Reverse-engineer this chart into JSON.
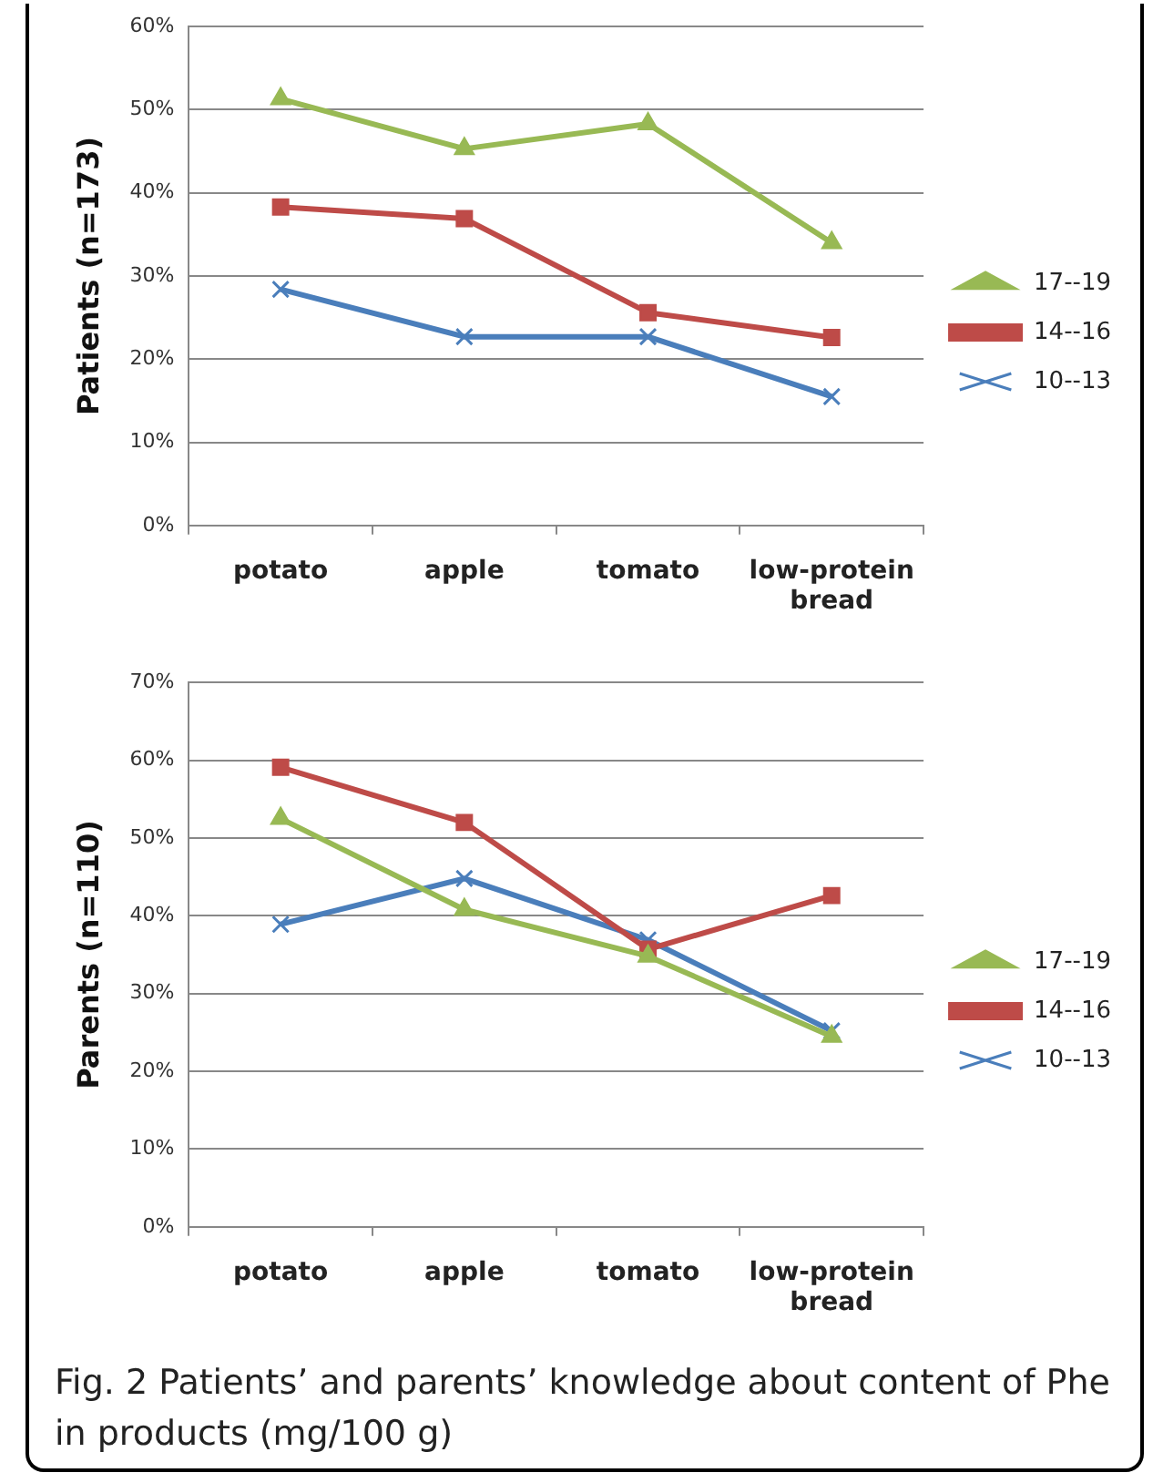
{
  "chart_data": [
    {
      "type": "line",
      "ylabel": "Patients (n=173)",
      "categories": [
        "potato",
        "apple",
        "tomato",
        "low-protein bread"
      ],
      "series": [
        {
          "name": "10--13",
          "color": "#4a7ebb",
          "marker": "cross",
          "values": [
            28.4,
            22.7,
            22.7,
            15.5
          ]
        },
        {
          "name": "14--16",
          "color": "#be4b48",
          "marker": "square",
          "values": [
            38.3,
            36.9,
            25.6,
            22.6
          ]
        },
        {
          "name": "17--19",
          "color": "#98b954",
          "marker": "triangle",
          "values": [
            51.3,
            45.3,
            48.3,
            34.0
          ]
        }
      ],
      "ylim": [
        0,
        60
      ],
      "yticks": [
        {
          "value": 0,
          "label": "0%"
        },
        {
          "value": 10,
          "label": "10%"
        },
        {
          "value": 20,
          "label": "20%"
        },
        {
          "value": 30,
          "label": "30%"
        },
        {
          "value": 40,
          "label": "40%"
        },
        {
          "value": 50,
          "label": "50%"
        },
        {
          "value": 60,
          "label": "60%"
        }
      ],
      "grid": "y",
      "legend": "right",
      "line_style": "solid"
    },
    {
      "type": "line",
      "ylabel": "Parents (n=110)",
      "categories": [
        "potato",
        "apple",
        "tomato",
        "low-protein bread"
      ],
      "series": [
        {
          "name": "10--13",
          "color": "#4a7ebb",
          "marker": "cross",
          "values": [
            38.9,
            44.8,
            36.9,
            25.2
          ]
        },
        {
          "name": "14--16",
          "color": "#be4b48",
          "marker": "square",
          "values": [
            59.1,
            52.0,
            35.7,
            42.6
          ]
        },
        {
          "name": "17--19",
          "color": "#98b954",
          "marker": "triangle",
          "values": [
            52.5,
            40.8,
            34.8,
            24.5
          ]
        }
      ],
      "ylim": [
        0,
        70
      ],
      "yticks": [
        {
          "value": 0,
          "label": "0%"
        },
        {
          "value": 10,
          "label": "10%"
        },
        {
          "value": 20,
          "label": "20%"
        },
        {
          "value": 30,
          "label": "30%"
        },
        {
          "value": 40,
          "label": "40%"
        },
        {
          "value": 50,
          "label": "50%"
        },
        {
          "value": 60,
          "label": "60%"
        },
        {
          "value": 70,
          "label": "70%"
        }
      ],
      "grid": "y",
      "legend": "right",
      "line_style": "solid",
      "annotations": [
        "Fig. 2 Patients’ and parents’ knowledge about content of Phe in products (mg/100 g)"
      ]
    }
  ]
}
